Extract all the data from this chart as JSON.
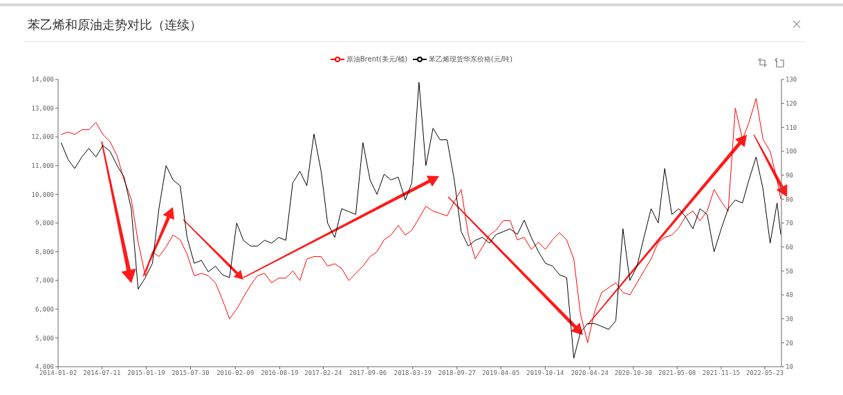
{
  "chart_data": {
    "type": "line",
    "title": "苯乙烯和原油走势对比（连续）",
    "legend": "top",
    "x": [
      "2014-01-15",
      "2014-02-15",
      "2014-03-15",
      "2014-04-15",
      "2014-05-15",
      "2014-06-15",
      "2014-07-15",
      "2014-08-15",
      "2014-09-15",
      "2014-10-15",
      "2014-11-15",
      "2014-12-15",
      "2015-01-15",
      "2015-02-15",
      "2015-03-15",
      "2015-04-15",
      "2015-05-15",
      "2015-06-15",
      "2015-07-15",
      "2015-08-15",
      "2015-09-15",
      "2015-10-15",
      "2015-11-15",
      "2015-12-15",
      "2016-01-15",
      "2016-02-15",
      "2016-03-15",
      "2016-04-15",
      "2016-05-15",
      "2016-06-15",
      "2016-07-15",
      "2016-08-15",
      "2016-09-15",
      "2016-10-15",
      "2016-11-15",
      "2016-12-15",
      "2017-01-15",
      "2017-02-15",
      "2017-03-15",
      "2017-04-15",
      "2017-05-15",
      "2017-06-15",
      "2017-07-15",
      "2017-08-15",
      "2017-09-15",
      "2017-10-15",
      "2017-11-15",
      "2017-12-15",
      "2018-01-15",
      "2018-02-15",
      "2018-03-15",
      "2018-04-15",
      "2018-05-15",
      "2018-06-15",
      "2018-07-15",
      "2018-08-15",
      "2018-09-15",
      "2018-10-15",
      "2018-11-15",
      "2018-12-15",
      "2019-01-15",
      "2019-02-15",
      "2019-03-15",
      "2019-04-15",
      "2019-05-15",
      "2019-06-15",
      "2019-07-15",
      "2019-08-15",
      "2019-09-15",
      "2019-10-15",
      "2019-11-15",
      "2019-12-15",
      "2020-01-15",
      "2020-02-15",
      "2020-03-15",
      "2020-04-15",
      "2020-05-15",
      "2020-06-15",
      "2020-07-15",
      "2020-08-15",
      "2020-09-15",
      "2020-10-15",
      "2020-11-15",
      "2020-12-15",
      "2021-01-15",
      "2021-02-15",
      "2021-03-15",
      "2021-04-15",
      "2021-05-15",
      "2021-06-15",
      "2021-07-15",
      "2021-08-15",
      "2021-09-15",
      "2021-10-15",
      "2021-11-15",
      "2021-12-15",
      "2022-01-15",
      "2022-02-15",
      "2022-03-15",
      "2022-04-15",
      "2022-05-15",
      "2022-06-15",
      "2022-07-15",
      "2022-07-31"
    ],
    "xlim": [
      "2014-01-02",
      "2022-08-03"
    ],
    "xticks": [
      "2014-01-02",
      "2014-07-11",
      "2015-01-19",
      "2015-07-30",
      "2016-02-09",
      "2016-08-19",
      "2017-02-24",
      "2017-09-06",
      "2018-03-19",
      "2018-09-27",
      "2019-04-05",
      "2019-10-14",
      "2020-04-24",
      "2020-10-30",
      "2021-05-08",
      "2021-11-15",
      "2022-05-23"
    ],
    "ylim": [
      4000,
      14000
    ],
    "yticks": [
      {
        "value": 4000,
        "label": "4,000"
      },
      {
        "value": 5000,
        "label": "5,000"
      },
      {
        "value": 6000,
        "label": "6,000"
      },
      {
        "value": 7000,
        "label": "7,000"
      },
      {
        "value": 8000,
        "label": "8,000"
      },
      {
        "value": 9000,
        "label": "9,000"
      },
      {
        "value": 10000,
        "label": "10,000"
      },
      {
        "value": 11000,
        "label": "11,000"
      },
      {
        "value": 12000,
        "label": "12,000"
      },
      {
        "value": 13000,
        "label": "13,000"
      },
      {
        "value": 14000,
        "label": "14,000"
      }
    ],
    "y2lim": [
      10,
      130
    ],
    "y2ticks": [
      10,
      20,
      30,
      40,
      50,
      60,
      70,
      80,
      90,
      100,
      110,
      120,
      130
    ],
    "series": [
      {
        "name": "原油Brent(美元/桶)",
        "color": "#ff0000",
        "axis": "y2",
        "values": [
          107,
          108,
          107,
          109,
          109,
          112,
          107,
          104,
          98,
          88,
          80,
          62,
          48,
          58,
          56,
          60,
          65,
          63,
          57,
          48,
          49,
          48,
          45,
          38,
          30,
          34,
          39,
          44,
          48,
          49,
          45,
          47,
          47,
          50,
          46,
          55,
          56,
          56,
          52,
          53,
          51,
          46,
          49,
          52,
          56,
          58,
          63,
          65,
          69,
          65,
          67,
          72,
          77,
          75,
          74,
          73,
          79,
          84,
          65,
          55,
          60,
          65,
          67,
          71,
          71,
          63,
          64,
          59,
          62,
          59,
          63,
          66,
          63,
          55,
          32,
          20,
          33,
          41,
          43,
          45,
          41,
          40,
          45,
          50,
          55,
          62,
          64,
          65,
          68,
          73,
          75,
          71,
          75,
          84,
          79,
          75,
          118,
          105,
          112,
          122,
          105,
          100,
          88,
          80
        ]
      },
      {
        "name": "苯乙烯现货华东价格(元/吨)",
        "color": "#000000",
        "axis": "y",
        "values": [
          11800,
          11200,
          10900,
          11300,
          11600,
          11300,
          11700,
          11500,
          11000,
          10600,
          9500,
          6700,
          7100,
          7600,
          9500,
          11000,
          10500,
          10300,
          8500,
          7600,
          7700,
          7300,
          7500,
          7200,
          7100,
          9000,
          8400,
          8200,
          8200,
          8400,
          8300,
          8500,
          8400,
          10400,
          10800,
          10300,
          12100,
          10800,
          9000,
          8500,
          9500,
          9400,
          9300,
          11800,
          10500,
          10000,
          10700,
          10500,
          10600,
          9800,
          10400,
          13900,
          11000,
          12300,
          11900,
          11900,
          10500,
          8700,
          8200,
          8400,
          8500,
          8300,
          8600,
          8700,
          8800,
          8600,
          9100,
          8500,
          8000,
          7600,
          7500,
          7200,
          7100,
          4300,
          5200,
          5500,
          5500,
          5400,
          5300,
          5600,
          8800,
          7000,
          7500,
          8500,
          9500,
          9000,
          10900,
          9300,
          9500,
          9200,
          8800,
          9500,
          9300,
          8000,
          8800,
          9500,
          9800,
          9700,
          10500,
          11300,
          10200,
          8300,
          9700,
          8600
        ]
      }
    ]
  }
}
